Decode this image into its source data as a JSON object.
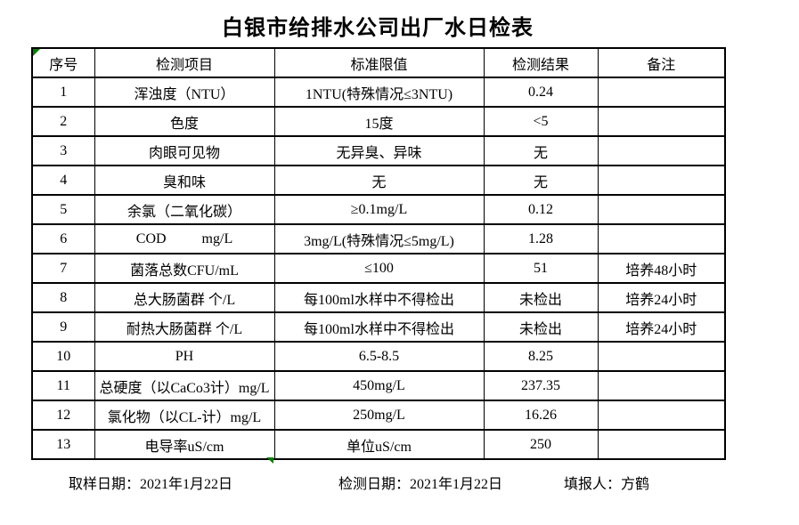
{
  "page": {
    "title": "白银市给排水公司出厂水日检表"
  },
  "table": {
    "headers": [
      "序号",
      "检测项目",
      "标准限值",
      "检测结果",
      "备注"
    ],
    "column_keys": [
      "seq",
      "item",
      "standard",
      "result",
      "remark"
    ],
    "rows": [
      {
        "seq": "1",
        "item": "浑浊度（NTU）",
        "standard": "1NTU(特殊情况≤3NTU)",
        "result": "0.24",
        "remark": ""
      },
      {
        "seq": "2",
        "item": "色度",
        "standard": "15度",
        "result": "<5",
        "remark": ""
      },
      {
        "seq": "3",
        "item": "肉眼可见物",
        "standard": "无异臭、异味",
        "result": "无",
        "remark": ""
      },
      {
        "seq": "4",
        "item": "臭和味",
        "standard": "无",
        "result": "无",
        "remark": ""
      },
      {
        "seq": "5",
        "item": "余氯（二氧化碳）",
        "standard": "≥0.1mg/L",
        "result": "0.12",
        "remark": ""
      },
      {
        "seq": "6",
        "item": "COD          mg/L",
        "standard": "3mg/L(特殊情况≤5mg/L)",
        "result": "1.28",
        "remark": ""
      },
      {
        "seq": "7",
        "item": "菌落总数CFU/mL",
        "standard": "≤100",
        "result": "51",
        "remark": "培养48小时"
      },
      {
        "seq": "8",
        "item": "总大肠菌群 个/L",
        "standard": "每100ml水样中不得检出",
        "result": "未检出",
        "remark": "培养24小时"
      },
      {
        "seq": "9",
        "item": "耐热大肠菌群 个/L",
        "standard": "每100ml水样中不得检出",
        "result": "未检出",
        "remark": "培养24小时"
      },
      {
        "seq": "10",
        "item": "PH",
        "standard": "6.5-8.5",
        "result": "8.25",
        "remark": ""
      },
      {
        "seq": "11",
        "item": "总硬度（以CaCo3计）mg/L",
        "standard": "450mg/L",
        "result": "237.35",
        "remark": ""
      },
      {
        "seq": "12",
        "item": "氯化物（以CL-计）mg/L",
        "standard": "250mg/L",
        "result": "16.26",
        "remark": ""
      },
      {
        "seq": "13",
        "item": "电导率uS/cm",
        "standard": "单位uS/cm",
        "result": "250",
        "remark": ""
      }
    ]
  },
  "footer": {
    "sampling_date": "取样日期：2021年1月22日",
    "test_date": "检测日期：2021年1月22日",
    "reporter": "填报人：方鹤"
  },
  "colors": {
    "table_border": "#000000",
    "excel_marker_green": "#008000",
    "background": "#ffffff"
  }
}
